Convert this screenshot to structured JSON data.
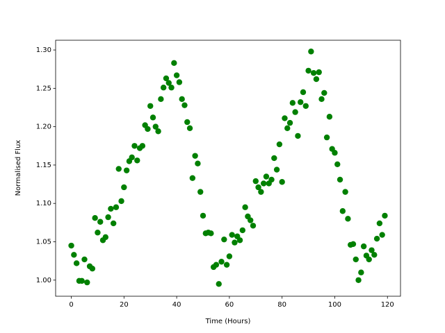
{
  "chart_data": {
    "type": "scatter",
    "xlabel": "Time (Hours)",
    "ylabel": "Normalised Flux",
    "color": "#008000",
    "xlim": [
      -5.95,
      124.95
    ],
    "ylim": [
      0.979,
      1.3127
    ],
    "xticks": [
      0,
      20,
      40,
      60,
      80,
      100,
      120
    ],
    "yticks": [
      {
        "value": 1.0,
        "label": "1.00"
      },
      1.05,
      {
        "value": 1.1,
        "label": "1.10"
      },
      1.15,
      {
        "value": 1.2,
        "label": "1.20"
      },
      1.25,
      {
        "value": 1.3,
        "label": "1.30"
      }
    ],
    "x": [
      0,
      1,
      2,
      3,
      4,
      5,
      6,
      7,
      8,
      9,
      10,
      11,
      12,
      13,
      14,
      15,
      16,
      17,
      18,
      19,
      20,
      21,
      22,
      23,
      24,
      25,
      26,
      27,
      28,
      29,
      30,
      31,
      32,
      33,
      34,
      35,
      36,
      37,
      38,
      39,
      40,
      41,
      42,
      43,
      44,
      45,
      46,
      47,
      48,
      49,
      50,
      51,
      52,
      53,
      54,
      55,
      56,
      57,
      58,
      59,
      60,
      61,
      62,
      63,
      64,
      65,
      66,
      67,
      68,
      69,
      70,
      71,
      72,
      73,
      74,
      75,
      76,
      77,
      78,
      79,
      80,
      81,
      82,
      83,
      84,
      85,
      86,
      87,
      88,
      89,
      90,
      91,
      92,
      93,
      94,
      95,
      96,
      97,
      98,
      99,
      100,
      101,
      102,
      103,
      104,
      105,
      106,
      107,
      108,
      109,
      110,
      111,
      112,
      113,
      114,
      115,
      116,
      117,
      118,
      119
    ],
    "values": [
      1.045,
      1.033,
      1.022,
      0.999,
      0.999,
      1.027,
      0.997,
      1.018,
      1.015,
      1.081,
      1.062,
      1.076,
      1.052,
      1.056,
      1.082,
      1.093,
      1.074,
      1.095,
      1.145,
      1.103,
      1.121,
      1.143,
      1.155,
      1.16,
      1.175,
      1.156,
      1.172,
      1.175,
      1.202,
      1.197,
      1.227,
      1.212,
      1.2,
      1.194,
      1.236,
      1.251,
      1.263,
      1.257,
      1.251,
      1.283,
      1.267,
      1.258,
      1.236,
      1.228,
      1.206,
      1.198,
      1.133,
      1.162,
      1.152,
      1.115,
      1.084,
      1.061,
      1.062,
      1.061,
      1.017,
      1.02,
      0.995,
      1.024,
      1.053,
      1.02,
      1.031,
      1.059,
      1.049,
      1.057,
      1.052,
      1.065,
      1.095,
      1.083,
      1.078,
      1.071,
      1.129,
      1.121,
      1.115,
      1.126,
      1.135,
      1.126,
      1.131,
      1.159,
      1.144,
      1.177,
      1.128,
      1.211,
      1.198,
      1.205,
      1.231,
      1.219,
      1.188,
      1.232,
      1.245,
      1.227,
      1.273,
      1.298,
      1.27,
      1.262,
      1.271,
      1.236,
      1.244,
      1.186,
      1.213,
      1.171,
      1.166,
      1.151,
      1.131,
      1.09,
      1.115,
      1.08,
      1.046,
      1.047,
      1.027,
      1.0,
      1.01,
      1.044,
      1.032,
      1.027,
      1.039,
      1.033,
      1.054,
      1.074,
      1.059,
      1.084
    ]
  }
}
